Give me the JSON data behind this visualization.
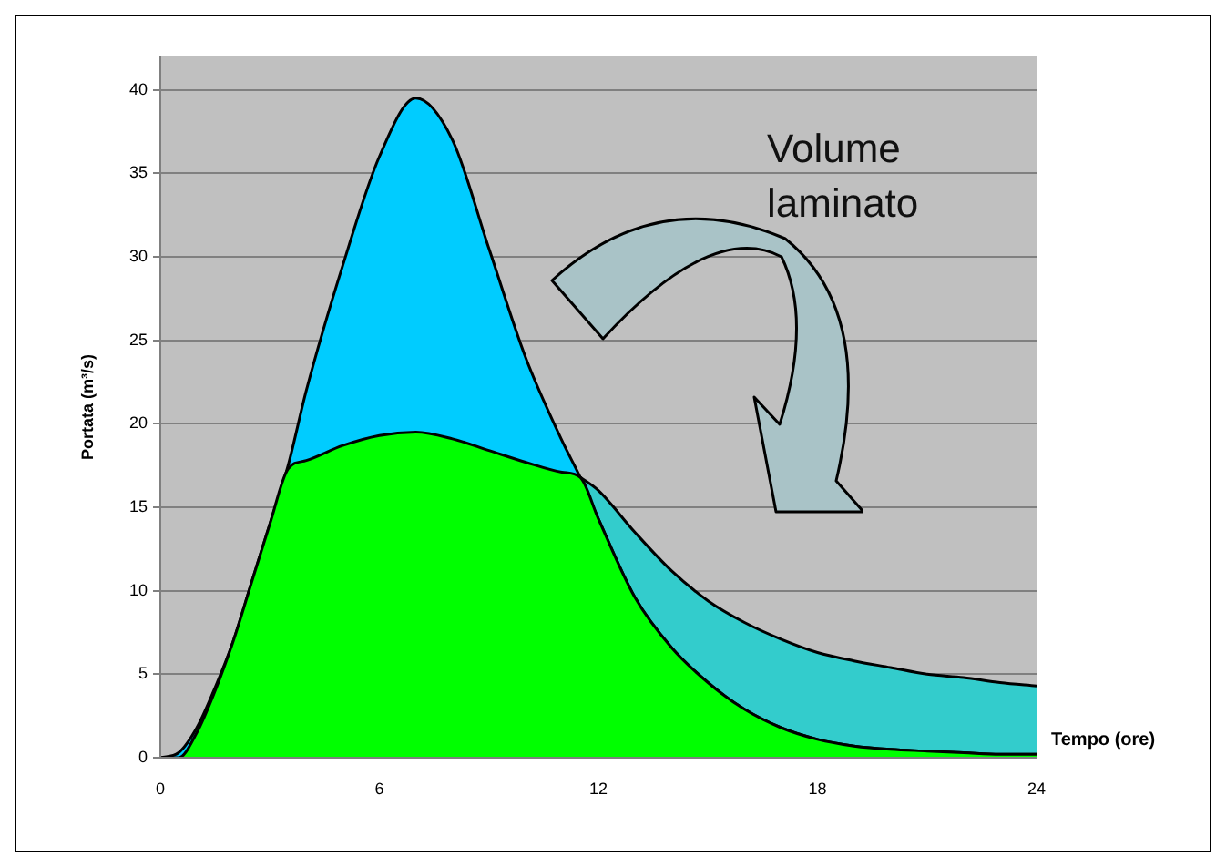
{
  "chart_data": {
    "type": "area",
    "stacked": true,
    "ylabel": "Portata (m³/s)",
    "xlabel": "Tempo (ore)",
    "annotations": [
      "Volume laminato"
    ],
    "x": [
      0,
      0.5,
      1,
      1.5,
      2,
      2.5,
      3,
      3.5,
      4,
      5,
      6,
      7,
      8,
      9,
      10,
      11,
      11.5,
      12,
      13,
      14,
      15,
      16,
      17,
      18,
      19,
      20,
      21,
      22,
      23,
      24
    ],
    "series": [
      {
        "color": "#00ff00",
        "values": [
          0,
          0,
          1.5,
          4,
          7,
          10.5,
          14,
          17.3,
          17.8,
          18.7,
          19.3,
          19.5,
          19.1,
          18.4,
          17.7,
          17.1,
          16.8,
          14.3,
          9.6,
          6.6,
          4.5,
          2.9,
          1.8,
          1.1,
          0.7,
          0.5,
          0.4,
          0.3,
          0.2,
          0.2
        ]
      },
      {
        "color": "#00ccff",
        "values": [
          0,
          0.3,
          0.3,
          0.2,
          0,
          0,
          0,
          0.2,
          4.2,
          10.8,
          16.7,
          20,
          17.9,
          12.1,
          6.3,
          1.9,
          0,
          0,
          0,
          0,
          0,
          0,
          0,
          0,
          0,
          0,
          0,
          0,
          0,
          0
        ]
      },
      {
        "color": "#33cccc",
        "values": [
          null,
          null,
          null,
          null,
          null,
          null,
          null,
          null,
          null,
          null,
          null,
          null,
          null,
          null,
          null,
          null,
          0,
          1.7,
          3.9,
          4.6,
          4.9,
          5.2,
          5.3,
          5.2,
          5.1,
          4.9,
          4.6,
          4.5,
          4.3,
          4.1
        ]
      }
    ],
    "xlim": [
      0,
      24
    ],
    "xticks": [
      0,
      6,
      12,
      18,
      24
    ],
    "ylim": [
      0,
      42
    ],
    "yticks": [
      0,
      5,
      10,
      15,
      20,
      25,
      30,
      35,
      40
    ],
    "grid": "y",
    "legend": false,
    "marker": "none"
  }
}
